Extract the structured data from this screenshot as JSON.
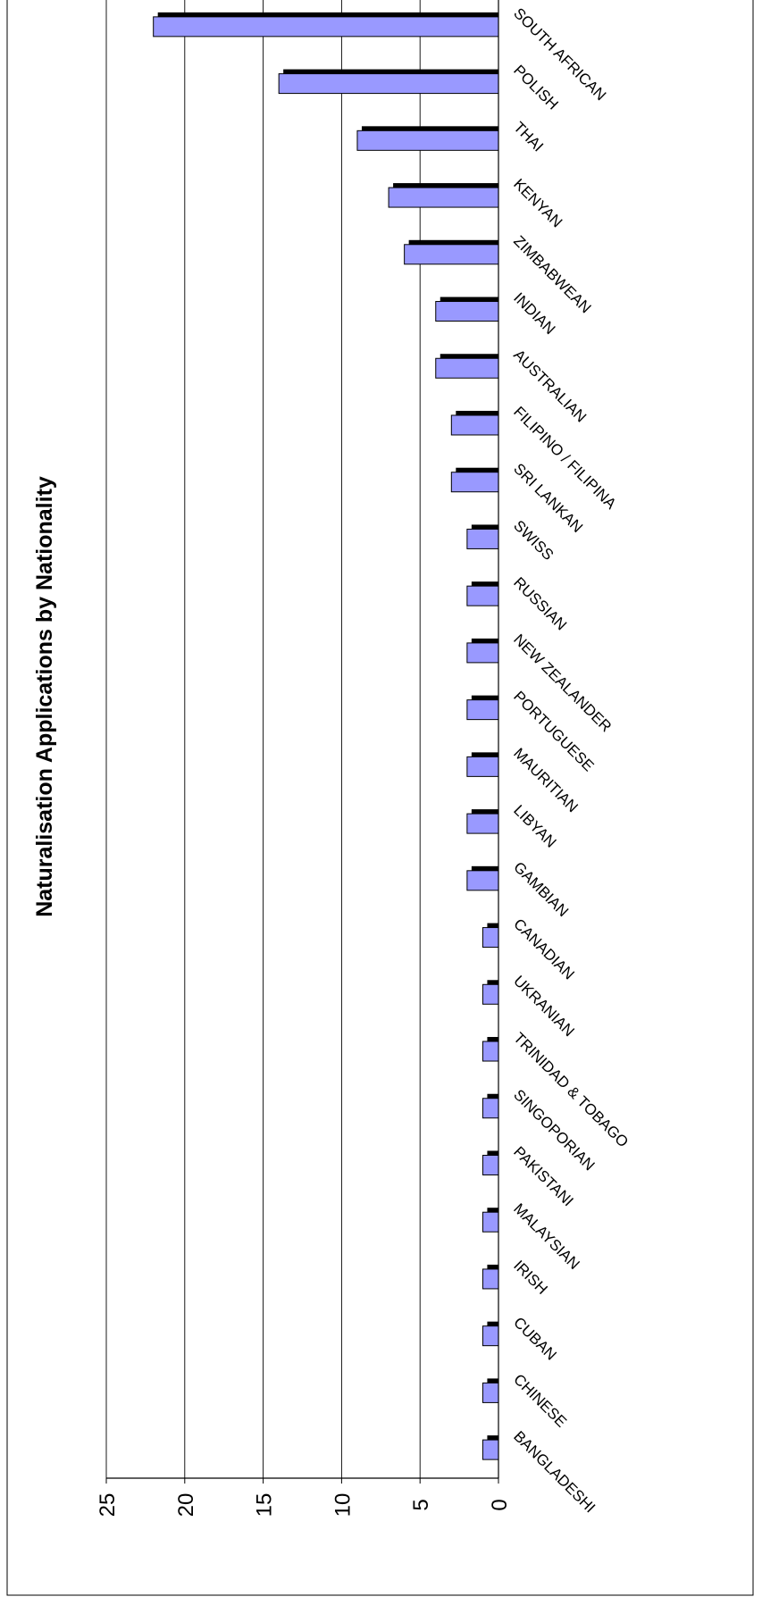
{
  "chart_data": {
    "type": "bar",
    "orientation": "rotated-90",
    "title": "Naturalisation Applications by Nationality",
    "xlabel": "",
    "ylabel": "",
    "ylim": [
      0,
      25
    ],
    "yticks": [
      0,
      5,
      10,
      15,
      20,
      25
    ],
    "grid": true,
    "legend": "none",
    "bar_color": "#9999ff",
    "shadow_color": "#000000",
    "categories": [
      "BANGLADESHI",
      "CHINESE",
      "CUBAN",
      "IRISH",
      "MALAYSIAN",
      "PAKISTANI",
      "SINGOPORIAN",
      "TRINIDAD & TOBAGO",
      "UKRANIAN",
      "CANADIAN",
      "GAMBIAN",
      "LIBYAN",
      "MAURITIAN",
      "PORTUGUESE",
      "NEW ZEALANDER",
      "RUSSIAN",
      "SWISS",
      "SRI LANKAN",
      "FILIPINO / FILIPINA",
      "AUSTRALIAN",
      "INDIAN",
      "ZIMBABWEAN",
      "KENYAN",
      "THAI",
      "POLISH",
      "SOUTH AFRICAN"
    ],
    "values": [
      1,
      1,
      1,
      1,
      1,
      1,
      1,
      1,
      1,
      1,
      2,
      2,
      2,
      2,
      2,
      2,
      2,
      3,
      3,
      4,
      4,
      6,
      7,
      9,
      14,
      22
    ]
  }
}
